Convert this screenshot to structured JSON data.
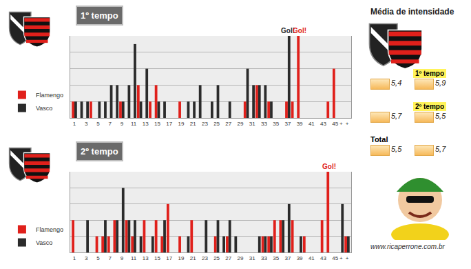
{
  "chart_data": [
    {
      "type": "bar",
      "title": "1º tempo",
      "categories": [
        "1",
        null,
        "3",
        null,
        "5",
        null,
        "7",
        null,
        "9",
        null,
        "11",
        null,
        "13",
        null,
        "15",
        null,
        "17",
        null,
        "19",
        null,
        "21",
        null,
        "23",
        null,
        "25",
        null,
        "27",
        null,
        "29",
        null,
        "31",
        null,
        "33",
        null,
        "35",
        null,
        "37",
        null,
        "39",
        null,
        "41",
        null,
        "43",
        null,
        "45",
        "+",
        "+"
      ],
      "series": [
        {
          "name": "Flamengo",
          "color": "#e0201b",
          "values": [
            1,
            null,
            null,
            1,
            null,
            null,
            null,
            null,
            1,
            null,
            null,
            2,
            null,
            1,
            2,
            null,
            null,
            null,
            1,
            null,
            null,
            null,
            null,
            null,
            null,
            null,
            null,
            null,
            null,
            1,
            null,
            2,
            null,
            1,
            null,
            null,
            1,
            1,
            5,
            null,
            null,
            null,
            null,
            1,
            3,
            null,
            null
          ]
        },
        {
          "name": "Vasco",
          "color": "#2b2b2b",
          "values": [
            1,
            1,
            1,
            null,
            1,
            1,
            2,
            2,
            1,
            2,
            4.5,
            1,
            3,
            null,
            1,
            1,
            null,
            null,
            null,
            1,
            1,
            2,
            null,
            1,
            2,
            null,
            1,
            null,
            null,
            3,
            2,
            2,
            2,
            1,
            null,
            null,
            5,
            null,
            null,
            null,
            null,
            null,
            null,
            null,
            null,
            null,
            null
          ]
        }
      ],
      "ylim": [
        0,
        5
      ],
      "yticks": [
        0,
        1,
        2,
        3,
        4,
        5
      ],
      "grid": true,
      "tick_labels": "x",
      "legend": "bottom left",
      "annotations": [
        {
          "text": "Gol!",
          "index": 36,
          "series": "Vasco"
        },
        {
          "text": "Gol!",
          "index": 38,
          "series": "Flamengo"
        }
      ]
    },
    {
      "type": "bar",
      "title": "2º tempo",
      "categories": [
        "1",
        null,
        "3",
        null,
        "5",
        null,
        "7",
        null,
        "9",
        null,
        "11",
        null,
        "13",
        null,
        "15",
        null,
        "17",
        null,
        "19",
        null,
        "21",
        null,
        "23",
        null,
        "25",
        null,
        "27",
        null,
        "29",
        null,
        "31",
        null,
        "33",
        null,
        "35",
        null,
        "37",
        null,
        "39",
        null,
        "41",
        null,
        "43",
        null,
        "45",
        "+",
        "+"
      ],
      "series": [
        {
          "name": "Flamengo",
          "color": "#e0201b",
          "values": [
            2,
            null,
            null,
            null,
            1,
            1,
            1,
            2,
            null,
            2,
            1,
            null,
            2,
            null,
            2,
            1,
            3,
            null,
            1,
            null,
            2,
            null,
            null,
            null,
            1,
            null,
            1,
            null,
            null,
            null,
            null,
            null,
            1,
            1,
            2,
            2,
            null,
            2,
            null,
            1,
            null,
            null,
            2,
            5,
            null,
            null,
            1
          ]
        },
        {
          "name": "Vasco",
          "color": "#2b2b2b",
          "values": [
            null,
            null,
            2,
            null,
            null,
            2,
            null,
            2,
            4,
            2,
            2,
            1,
            null,
            1,
            null,
            2,
            null,
            null,
            null,
            1,
            null,
            null,
            2,
            null,
            2,
            1,
            2,
            1,
            null,
            null,
            null,
            1,
            1,
            1,
            null,
            2,
            3,
            null,
            1,
            null,
            null,
            null,
            null,
            null,
            null,
            3,
            1
          ]
        }
      ],
      "ylim": [
        0,
        5
      ],
      "yticks": [
        0,
        1,
        2,
        3,
        4,
        5
      ],
      "grid": true,
      "tick_labels": "x",
      "legend": "bottom left",
      "annotations": [
        {
          "text": "Gol!",
          "index": 43,
          "series": "Flamengo"
        }
      ]
    }
  ],
  "intensity_panel": {
    "title": "Média de intensidade",
    "rows": [
      {
        "label": "1º tempo",
        "values": [
          "5,4",
          "5,9"
        ]
      },
      {
        "label": "2º tempo",
        "values": [
          "5,7",
          "5,5"
        ]
      },
      {
        "label": "Total",
        "values": [
          "5,5",
          "5,7"
        ]
      }
    ]
  },
  "credit": "www.ricaperrone.com.br"
}
